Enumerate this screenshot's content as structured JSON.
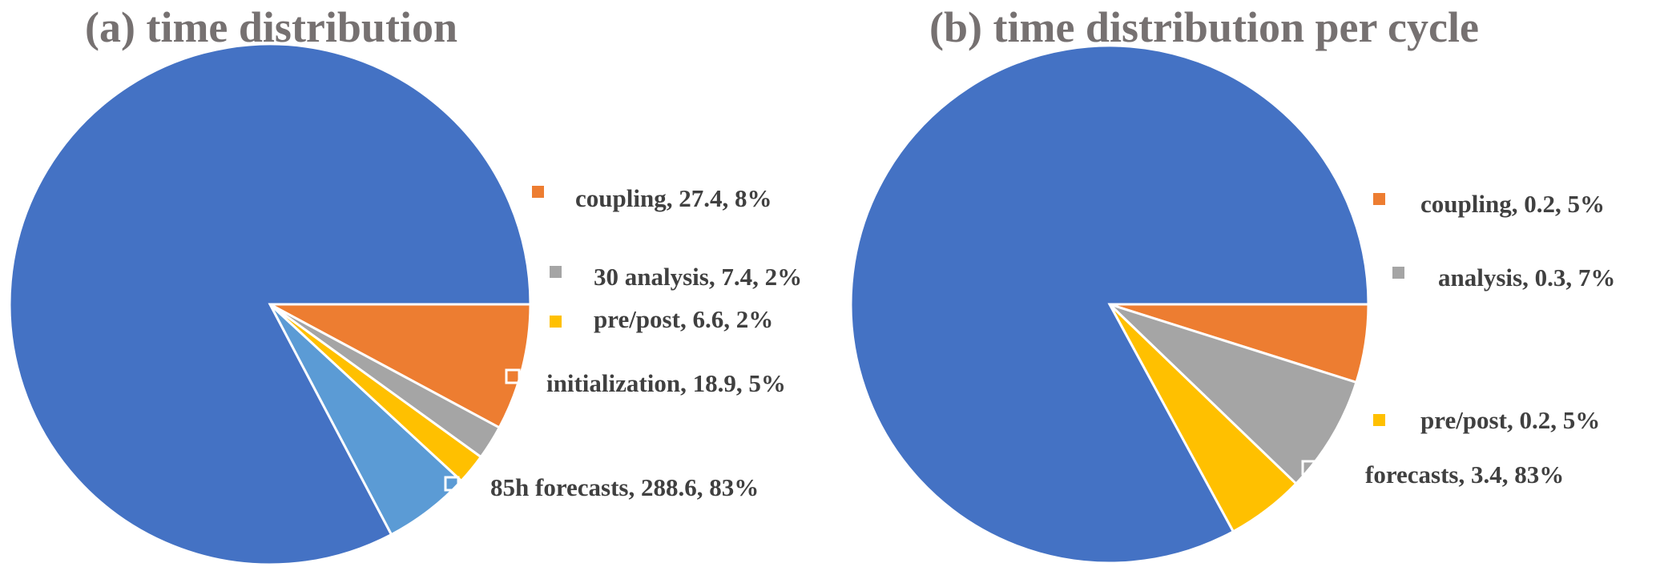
{
  "chart_data": [
    {
      "type": "pie",
      "title": "(a) time distribution",
      "slices": [
        {
          "label": "coupling, 27.4, 8%",
          "value": 27.4,
          "percent": 8,
          "color": "#ED7D31"
        },
        {
          "label": "30 analysis, 7.4, 2%",
          "value": 7.4,
          "percent": 2,
          "color": "#A5A5A5"
        },
        {
          "label": "pre/post, 6.6, 2%",
          "value": 6.6,
          "percent": 2,
          "color": "#FFC000"
        },
        {
          "label": "initialization, 18.9, 5%",
          "value": 18.9,
          "percent": 5,
          "color": "#5B9BD5"
        },
        {
          "label": "85h forecasts, 288.6, 83%",
          "value": 288.6,
          "percent": 83,
          "color": "#4472C4"
        }
      ]
    },
    {
      "type": "pie",
      "title": "(b) time distribution per cycle",
      "slices": [
        {
          "label": "coupling, 0.2, 5%",
          "value": 0.2,
          "percent": 5,
          "color": "#ED7D31"
        },
        {
          "label": "analysis, 0.3, 7%",
          "value": 0.3,
          "percent": 7,
          "color": "#A5A5A5"
        },
        {
          "label": "pre/post, 0.2, 5%",
          "value": 0.2,
          "percent": 5,
          "color": "#FFC000"
        },
        {
          "label": "forecasts, 3.4, 83%",
          "value": 3.4,
          "percent": 83,
          "color": "#4472C4"
        }
      ]
    }
  ]
}
